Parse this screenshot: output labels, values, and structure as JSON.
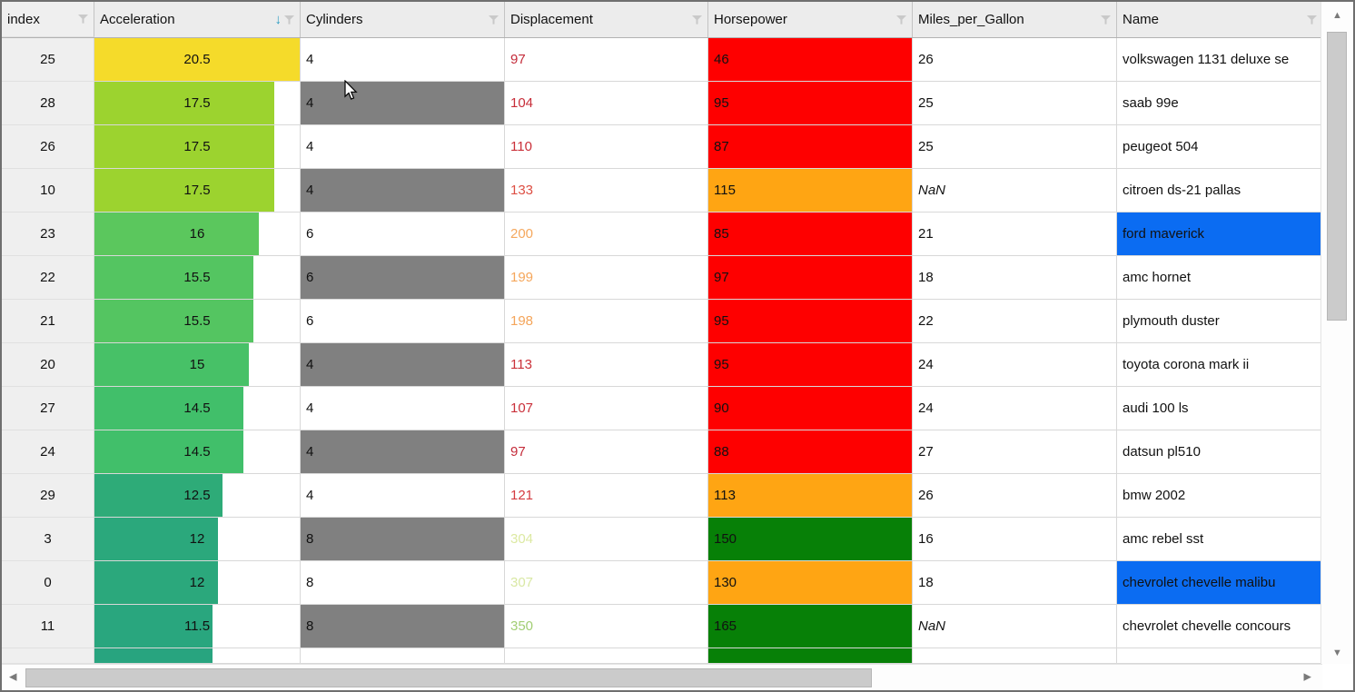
{
  "grid": {
    "columns": [
      {
        "label": "index",
        "filter_icon": "funnel-icon"
      },
      {
        "label": "Acceleration",
        "filter_icon": "funnel-icon",
        "sort_indicator": "descending-arrow"
      },
      {
        "label": "Cylinders",
        "filter_icon": "funnel-icon"
      },
      {
        "label": "Displacement",
        "filter_icon": "funnel-icon"
      },
      {
        "label": "Horsepower",
        "filter_icon": "funnel-icon"
      },
      {
        "label": "Miles_per_Gallon",
        "filter_icon": "funnel-icon"
      },
      {
        "label": "Name",
        "filter_icon": "funnel-icon"
      }
    ],
    "sort": {
      "column": "Acceleration",
      "direction": "descending",
      "arrow_glyph": "↓",
      "arrow_color": "#2a9cc2"
    },
    "bar_scale_max": 20,
    "colors": {
      "header_bg": "#ececec",
      "index_bg": "#efefef",
      "cylinders_gray": "#808080",
      "hp_red": "#fe0000",
      "hp_orange": "#ffa513",
      "hp_green": "#078007",
      "name_highlight_blue": "#0b6cf2",
      "funnel_gray": "#c9c9c9"
    },
    "rows": [
      {
        "index": "25",
        "accel": {
          "label": "20.5",
          "value": 20.5,
          "color": "#f5db2a"
        },
        "cyl": {
          "label": "4",
          "gray": false
        },
        "disp": {
          "label": "97",
          "color": "#c42b3a"
        },
        "hp": {
          "label": "46",
          "bg": "#fe0000"
        },
        "mpg": {
          "label": "26",
          "italic": false
        },
        "name": {
          "label": "volkswagen 1131 deluxe se",
          "bg": ""
        }
      },
      {
        "index": "28",
        "accel": {
          "label": "17.5",
          "value": 17.5,
          "color": "#9cd32f"
        },
        "cyl": {
          "label": "4",
          "gray": true
        },
        "disp": {
          "label": "104",
          "color": "#c72d39"
        },
        "hp": {
          "label": "95",
          "bg": "#fe0000"
        },
        "mpg": {
          "label": "25",
          "italic": false
        },
        "name": {
          "label": "saab 99e",
          "bg": ""
        }
      },
      {
        "index": "26",
        "accel": {
          "label": "17.5",
          "value": 17.5,
          "color": "#9cd32f"
        },
        "cyl": {
          "label": "4",
          "gray": false
        },
        "disp": {
          "label": "110",
          "color": "#ca3039"
        },
        "hp": {
          "label": "87",
          "bg": "#fe0000"
        },
        "mpg": {
          "label": "25",
          "italic": false
        },
        "name": {
          "label": "peugeot 504",
          "bg": ""
        }
      },
      {
        "index": "10",
        "accel": {
          "label": "17.5",
          "value": 17.5,
          "color": "#9cd32f"
        },
        "cyl": {
          "label": "4",
          "gray": true
        },
        "disp": {
          "label": "133",
          "color": "#dd4f44"
        },
        "hp": {
          "label": "115",
          "bg": "#ffa513"
        },
        "mpg": {
          "label": "NaN",
          "italic": true
        },
        "name": {
          "label": "citroen ds-21 pallas",
          "bg": ""
        }
      },
      {
        "index": "23",
        "accel": {
          "label": "16",
          "value": 16,
          "color": "#5bc75d"
        },
        "cyl": {
          "label": "6",
          "gray": false
        },
        "disp": {
          "label": "200",
          "color": "#f5a85e"
        },
        "hp": {
          "label": "85",
          "bg": "#fe0000"
        },
        "mpg": {
          "label": "21",
          "italic": false
        },
        "name": {
          "label": "ford maverick",
          "bg": "#0b6cf2"
        }
      },
      {
        "index": "22",
        "accel": {
          "label": "15.5",
          "value": 15.5,
          "color": "#54c561"
        },
        "cyl": {
          "label": "6",
          "gray": true
        },
        "disp": {
          "label": "199",
          "color": "#f5a75c"
        },
        "hp": {
          "label": "97",
          "bg": "#fe0000"
        },
        "mpg": {
          "label": "18",
          "italic": false
        },
        "name": {
          "label": "amc hornet",
          "bg": ""
        }
      },
      {
        "index": "21",
        "accel": {
          "label": "15.5",
          "value": 15.5,
          "color": "#54c561"
        },
        "cyl": {
          "label": "6",
          "gray": false
        },
        "disp": {
          "label": "198",
          "color": "#f4a55a"
        },
        "hp": {
          "label": "95",
          "bg": "#fe0000"
        },
        "mpg": {
          "label": "22",
          "italic": false
        },
        "name": {
          "label": "plymouth duster",
          "bg": ""
        }
      },
      {
        "index": "20",
        "accel": {
          "label": "15",
          "value": 15,
          "color": "#47c167"
        },
        "cyl": {
          "label": "4",
          "gray": true
        },
        "disp": {
          "label": "113",
          "color": "#cb323a"
        },
        "hp": {
          "label": "95",
          "bg": "#fe0000"
        },
        "mpg": {
          "label": "24",
          "italic": false
        },
        "name": {
          "label": "toyota corona mark ii",
          "bg": ""
        }
      },
      {
        "index": "27",
        "accel": {
          "label": "14.5",
          "value": 14.5,
          "color": "#41bf6a"
        },
        "cyl": {
          "label": "4",
          "gray": false
        },
        "disp": {
          "label": "107",
          "color": "#c9303a"
        },
        "hp": {
          "label": "90",
          "bg": "#fe0000"
        },
        "mpg": {
          "label": "24",
          "italic": false
        },
        "name": {
          "label": "audi 100 ls",
          "bg": ""
        }
      },
      {
        "index": "24",
        "accel": {
          "label": "14.5",
          "value": 14.5,
          "color": "#41bf6a"
        },
        "cyl": {
          "label": "4",
          "gray": true
        },
        "disp": {
          "label": "97",
          "color": "#c42b3a"
        },
        "hp": {
          "label": "88",
          "bg": "#fe0000"
        },
        "mpg": {
          "label": "27",
          "italic": false
        },
        "name": {
          "label": "datsun pl510",
          "bg": ""
        }
      },
      {
        "index": "29",
        "accel": {
          "label": "12.5",
          "value": 12.5,
          "color": "#2eab78"
        },
        "cyl": {
          "label": "4",
          "gray": false
        },
        "disp": {
          "label": "121",
          "color": "#d43a40"
        },
        "hp": {
          "label": "113",
          "bg": "#ffa513"
        },
        "mpg": {
          "label": "26",
          "italic": false
        },
        "name": {
          "label": "bmw 2002",
          "bg": ""
        }
      },
      {
        "index": "3",
        "accel": {
          "label": "12",
          "value": 12,
          "color": "#2ba87c"
        },
        "cyl": {
          "label": "8",
          "gray": true
        },
        "disp": {
          "label": "304",
          "color": "#dce9a2"
        },
        "hp": {
          "label": "150",
          "bg": "#078007"
        },
        "mpg": {
          "label": "16",
          "italic": false
        },
        "name": {
          "label": "amc rebel sst",
          "bg": ""
        }
      },
      {
        "index": "0",
        "accel": {
          "label": "12",
          "value": 12,
          "color": "#2ba87c"
        },
        "cyl": {
          "label": "8",
          "gray": false
        },
        "disp": {
          "label": "307",
          "color": "#d9e8a4"
        },
        "hp": {
          "label": "130",
          "bg": "#ffa513"
        },
        "mpg": {
          "label": "18",
          "italic": false
        },
        "name": {
          "label": "chevrolet chevelle malibu",
          "bg": "#0b6cf2"
        }
      },
      {
        "index": "11",
        "accel": {
          "label": "11.5",
          "value": 11.5,
          "color": "#29a67e"
        },
        "cyl": {
          "label": "8",
          "gray": true
        },
        "disp": {
          "label": "350",
          "color": "#a2ce74"
        },
        "hp": {
          "label": "165",
          "bg": "#078007"
        },
        "mpg": {
          "label": "NaN",
          "italic": true
        },
        "name": {
          "label": "chevrolet chevelle concours",
          "bg": ""
        }
      },
      {
        "partial": true,
        "index": "",
        "accel": {
          "label": "",
          "value": 11.5,
          "color": "#28a47f"
        },
        "cyl": {
          "label": "",
          "gray": false
        },
        "disp": {
          "label": "",
          "color": ""
        },
        "hp": {
          "label": "",
          "bg": "#078007"
        },
        "mpg": {
          "label": "",
          "italic": false
        },
        "name": {
          "label": "",
          "bg": ""
        }
      }
    ]
  },
  "scrollbars": {
    "vertical": {
      "up_glyph": "▲",
      "down_glyph": "▼"
    },
    "horizontal": {
      "left_glyph": "◀",
      "right_glyph": "▶"
    }
  }
}
